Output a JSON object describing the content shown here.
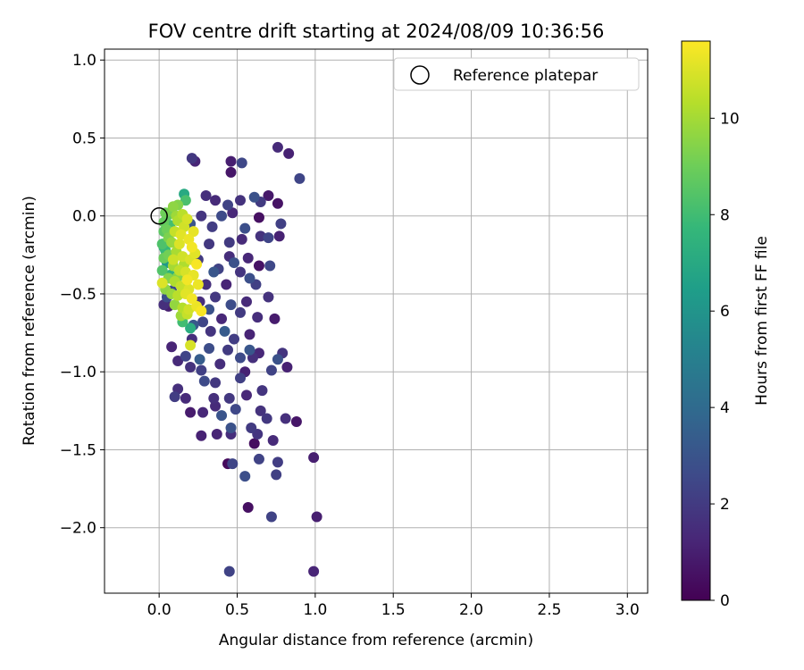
{
  "chart_data": {
    "type": "scatter",
    "title": "FOV centre drift starting at 2024/08/09 10:36:56",
    "xlabel": "Angular distance from reference (arcmin)",
    "ylabel": "Rotation from reference (arcmin)",
    "xlim": [
      -0.35,
      3.13
    ],
    "ylim": [
      -2.42,
      1.07
    ],
    "xticks": [
      0.0,
      0.5,
      1.0,
      1.5,
      2.0,
      2.5,
      3.0
    ],
    "xtick_labels": [
      "0.0",
      "0.5",
      "1.0",
      "1.5",
      "2.0",
      "2.5",
      "3.0"
    ],
    "yticks": [
      -2.0,
      -1.5,
      -1.0,
      -0.5,
      0.0,
      0.5,
      1.0
    ],
    "ytick_labels": [
      "−2.0",
      "−1.5",
      "−1.0",
      "−0.5",
      "0.0",
      "0.5",
      "1.0"
    ],
    "grid": true,
    "legend": {
      "placement": "upper-right",
      "entries": [
        "Reference platepar"
      ]
    },
    "reference_point": {
      "x": 0.0,
      "y": 0.0
    },
    "colorbar": {
      "label": "Hours from first FF file",
      "range": [
        0,
        11.6
      ],
      "ticks": [
        0,
        2,
        4,
        6,
        8,
        10
      ],
      "tick_labels": [
        "0",
        "2",
        "4",
        "6",
        "8",
        "10"
      ],
      "colormap": "viridis",
      "colors": [
        "#440154",
        "#482878",
        "#3e4a89",
        "#31688e",
        "#26828e",
        "#1f9e89",
        "#35b779",
        "#6ece58",
        "#b5de2b",
        "#fde725"
      ]
    },
    "points": [
      {
        "x": 0.45,
        "y": -2.28,
        "t": 2.3
      },
      {
        "x": 0.99,
        "y": -2.28,
        "t": 1.2
      },
      {
        "x": 0.57,
        "y": -1.87,
        "t": 0.5
      },
      {
        "x": 0.72,
        "y": -1.93,
        "t": 2.3
      },
      {
        "x": 1.01,
        "y": -1.93,
        "t": 1.0
      },
      {
        "x": 0.55,
        "y": -1.67,
        "t": 2.8
      },
      {
        "x": 0.75,
        "y": -1.66,
        "t": 2.2
      },
      {
        "x": 0.44,
        "y": -1.59,
        "t": 0.3
      },
      {
        "x": 0.47,
        "y": -1.59,
        "t": 2.4
      },
      {
        "x": 0.64,
        "y": -1.56,
        "t": 2.3
      },
      {
        "x": 0.76,
        "y": -1.58,
        "t": 2.1
      },
      {
        "x": 0.99,
        "y": -1.55,
        "t": 1.0
      },
      {
        "x": 0.61,
        "y": -1.46,
        "t": 0.4
      },
      {
        "x": 0.27,
        "y": -1.41,
        "t": 1.1
      },
      {
        "x": 0.37,
        "y": -1.4,
        "t": 1.2
      },
      {
        "x": 0.46,
        "y": -1.4,
        "t": 1.5
      },
      {
        "x": 0.63,
        "y": -1.4,
        "t": 1.8
      },
      {
        "x": 0.73,
        "y": -1.44,
        "t": 1.4
      },
      {
        "x": 0.46,
        "y": -1.36,
        "t": 2.9
      },
      {
        "x": 0.59,
        "y": -1.36,
        "t": 2.0
      },
      {
        "x": 0.69,
        "y": -1.3,
        "t": 1.9
      },
      {
        "x": 0.81,
        "y": -1.3,
        "t": 1.6
      },
      {
        "x": 0.88,
        "y": -1.32,
        "t": 0.7
      },
      {
        "x": 0.2,
        "y": -1.26,
        "t": 0.9
      },
      {
        "x": 0.28,
        "y": -1.26,
        "t": 1.3
      },
      {
        "x": 0.36,
        "y": -1.22,
        "t": 1.4
      },
      {
        "x": 0.49,
        "y": -1.24,
        "t": 2.5
      },
      {
        "x": 0.65,
        "y": -1.25,
        "t": 1.7
      },
      {
        "x": 0.1,
        "y": -1.16,
        "t": 2.1
      },
      {
        "x": 0.17,
        "y": -1.17,
        "t": 1.4
      },
      {
        "x": 0.35,
        "y": -1.17,
        "t": 1.6
      },
      {
        "x": 0.45,
        "y": -1.17,
        "t": 1.9
      },
      {
        "x": 0.56,
        "y": -1.15,
        "t": 1.3
      },
      {
        "x": 0.66,
        "y": -1.12,
        "t": 1.8
      },
      {
        "x": 0.12,
        "y": -1.11,
        "t": 1.6
      },
      {
        "x": 0.29,
        "y": -1.06,
        "t": 2.6
      },
      {
        "x": 0.52,
        "y": -1.04,
        "t": 2.2
      },
      {
        "x": 0.82,
        "y": -0.97,
        "t": 1.1
      },
      {
        "x": 0.72,
        "y": -0.99,
        "t": 2.3
      },
      {
        "x": 0.08,
        "y": -0.84,
        "t": 1.2
      },
      {
        "x": 0.17,
        "y": -0.9,
        "t": 2.4
      },
      {
        "x": 0.32,
        "y": -0.85,
        "t": 2.7
      },
      {
        "x": 0.44,
        "y": -0.86,
        "t": 2.0
      },
      {
        "x": 0.64,
        "y": -0.88,
        "t": 1.3
      },
      {
        "x": 0.79,
        "y": -0.88,
        "t": 1.8
      },
      {
        "x": 0.76,
        "y": -0.92,
        "t": 2.9
      },
      {
        "x": 0.12,
        "y": -0.93,
        "t": 1.4
      },
      {
        "x": 0.2,
        "y": -0.97,
        "t": 1.7
      },
      {
        "x": 0.39,
        "y": -0.95,
        "t": 1.5
      },
      {
        "x": 0.52,
        "y": -0.91,
        "t": 2.6
      },
      {
        "x": 0.6,
        "y": -0.91,
        "t": 1.6
      },
      {
        "x": 0.27,
        "y": -0.99,
        "t": 2.2
      },
      {
        "x": 0.55,
        "y": -1.0,
        "t": 1.1
      },
      {
        "x": 0.36,
        "y": -1.07,
        "t": 1.9
      },
      {
        "x": 0.21,
        "y": -0.79,
        "t": 1.5
      },
      {
        "x": 0.33,
        "y": -0.74,
        "t": 1.8
      },
      {
        "x": 0.48,
        "y": -0.79,
        "t": 2.1
      },
      {
        "x": 0.58,
        "y": -0.76,
        "t": 1.2
      },
      {
        "x": 0.74,
        "y": -0.66,
        "t": 0.9
      },
      {
        "x": 0.28,
        "y": -0.68,
        "t": 2.4
      },
      {
        "x": 0.4,
        "y": -0.66,
        "t": 1.3
      },
      {
        "x": 0.52,
        "y": -0.62,
        "t": 2.0
      },
      {
        "x": 0.63,
        "y": -0.65,
        "t": 1.5
      },
      {
        "x": 0.46,
        "y": -0.57,
        "t": 2.7
      },
      {
        "x": 0.56,
        "y": -0.55,
        "t": 1.4
      },
      {
        "x": 0.7,
        "y": -0.52,
        "t": 1.7
      },
      {
        "x": 0.36,
        "y": -0.52,
        "t": 1.9
      },
      {
        "x": 0.43,
        "y": -0.44,
        "t": 1.2
      },
      {
        "x": 0.62,
        "y": -0.44,
        "t": 2.2
      },
      {
        "x": 0.3,
        "y": -0.44,
        "t": 1.6
      },
      {
        "x": 0.52,
        "y": -0.36,
        "t": 1.8
      },
      {
        "x": 0.38,
        "y": -0.34,
        "t": 2.3
      },
      {
        "x": 0.64,
        "y": -0.32,
        "t": 0.6
      },
      {
        "x": 0.71,
        "y": -0.32,
        "t": 2.5
      },
      {
        "x": 0.57,
        "y": -0.27,
        "t": 1.3
      },
      {
        "x": 0.45,
        "y": -0.26,
        "t": 1.5
      },
      {
        "x": 0.32,
        "y": -0.18,
        "t": 1.9
      },
      {
        "x": 0.45,
        "y": -0.17,
        "t": 2.0
      },
      {
        "x": 0.53,
        "y": -0.15,
        "t": 1.4
      },
      {
        "x": 0.65,
        "y": -0.13,
        "t": 1.7
      },
      {
        "x": 0.77,
        "y": -0.13,
        "t": 1.1
      },
      {
        "x": 0.7,
        "y": -0.14,
        "t": 2.4
      },
      {
        "x": 0.34,
        "y": -0.07,
        "t": 2.1
      },
      {
        "x": 0.55,
        "y": -0.08,
        "t": 2.8
      },
      {
        "x": 0.78,
        "y": -0.05,
        "t": 2.2
      },
      {
        "x": 0.27,
        "y": 0.0,
        "t": 1.8
      },
      {
        "x": 0.4,
        "y": 0.0,
        "t": 2.6
      },
      {
        "x": 0.64,
        "y": -0.01,
        "t": 0.5
      },
      {
        "x": 0.3,
        "y": 0.13,
        "t": 1.6
      },
      {
        "x": 0.36,
        "y": 0.1,
        "t": 1.4
      },
      {
        "x": 0.44,
        "y": 0.07,
        "t": 2.3
      },
      {
        "x": 0.52,
        "y": 0.1,
        "t": 1.7
      },
      {
        "x": 0.61,
        "y": 0.12,
        "t": 2.9
      },
      {
        "x": 0.7,
        "y": 0.13,
        "t": 0.8
      },
      {
        "x": 0.76,
        "y": 0.08,
        "t": 0.6
      },
      {
        "x": 0.9,
        "y": 0.24,
        "t": 2.4
      },
      {
        "x": 0.21,
        "y": 0.37,
        "t": 1.9
      },
      {
        "x": 0.23,
        "y": 0.35,
        "t": 1.2
      },
      {
        "x": 0.46,
        "y": 0.35,
        "t": 1.0
      },
      {
        "x": 0.53,
        "y": 0.34,
        "t": 2.5
      },
      {
        "x": 0.46,
        "y": 0.28,
        "t": 0.7
      },
      {
        "x": 0.76,
        "y": 0.44,
        "t": 1.4
      },
      {
        "x": 0.83,
        "y": 0.4,
        "t": 1.1
      },
      {
        "x": 0.47,
        "y": 0.02,
        "t": 1.3
      },
      {
        "x": 0.65,
        "y": 0.09,
        "t": 2.0
      },
      {
        "x": 0.2,
        "y": -0.05,
        "t": 3.0
      },
      {
        "x": 0.25,
        "y": -0.28,
        "t": 2.0
      },
      {
        "x": 0.26,
        "y": -0.55,
        "t": 1.5
      },
      {
        "x": 0.22,
        "y": -0.7,
        "t": 3.2
      },
      {
        "x": 0.32,
        "y": -0.6,
        "t": 2.9
      },
      {
        "x": 0.42,
        "y": -0.74,
        "t": 3.3
      },
      {
        "x": 0.48,
        "y": -0.3,
        "t": 2.9
      },
      {
        "x": 0.58,
        "y": -0.4,
        "t": 2.8
      },
      {
        "x": 0.58,
        "y": -0.86,
        "t": 3.1
      },
      {
        "x": 0.4,
        "y": -1.28,
        "t": 3.0
      },
      {
        "x": 0.26,
        "y": -0.92,
        "t": 3.4
      },
      {
        "x": 0.35,
        "y": -0.36,
        "t": 3.1
      },
      {
        "x": 0.05,
        "y": -0.52,
        "t": 2.8
      },
      {
        "x": 0.06,
        "y": -0.58,
        "t": 1.0
      },
      {
        "x": 0.03,
        "y": -0.57,
        "t": 1.6
      },
      {
        "x": 0.08,
        "y": -0.48,
        "t": 2.6
      },
      {
        "x": 0.05,
        "y": -0.3,
        "t": 6.2
      },
      {
        "x": 0.07,
        "y": -0.38,
        "t": 7.4
      },
      {
        "x": 0.04,
        "y": -0.22,
        "t": 7.8
      },
      {
        "x": 0.02,
        "y": -0.18,
        "t": 8.3
      },
      {
        "x": 0.03,
        "y": -0.1,
        "t": 8.6
      },
      {
        "x": 0.03,
        "y": -0.04,
        "t": 8.8
      },
      {
        "x": 0.05,
        "y": 0.0,
        "t": 8.7
      },
      {
        "x": 0.04,
        "y": 0.02,
        "t": 9.0
      },
      {
        "x": 0.08,
        "y": 0.03,
        "t": 9.2
      },
      {
        "x": 0.09,
        "y": 0.06,
        "t": 9.6
      },
      {
        "x": 0.12,
        "y": 0.07,
        "t": 9.4
      },
      {
        "x": 0.16,
        "y": 0.14,
        "t": 7.0
      },
      {
        "x": 0.17,
        "y": 0.1,
        "t": 8.2
      },
      {
        "x": 0.15,
        "y": 0.01,
        "t": 10.4
      },
      {
        "x": 0.18,
        "y": -0.02,
        "t": 10.9
      },
      {
        "x": 0.12,
        "y": -0.03,
        "t": 10.2
      },
      {
        "x": 0.1,
        "y": -0.1,
        "t": 10.6
      },
      {
        "x": 0.14,
        "y": -0.12,
        "t": 11.1
      },
      {
        "x": 0.19,
        "y": -0.15,
        "t": 11.3
      },
      {
        "x": 0.22,
        "y": -0.1,
        "t": 11.2
      },
      {
        "x": 0.21,
        "y": -0.2,
        "t": 11.4
      },
      {
        "x": 0.08,
        "y": -0.17,
        "t": 9.8
      },
      {
        "x": 0.06,
        "y": -0.25,
        "t": 9.1
      },
      {
        "x": 0.11,
        "y": -0.23,
        "t": 10.1
      },
      {
        "x": 0.15,
        "y": -0.26,
        "t": 10.8
      },
      {
        "x": 0.2,
        "y": -0.28,
        "t": 11.0
      },
      {
        "x": 0.24,
        "y": -0.31,
        "t": 11.5
      },
      {
        "x": 0.09,
        "y": -0.32,
        "t": 10.0
      },
      {
        "x": 0.13,
        "y": -0.35,
        "t": 10.5
      },
      {
        "x": 0.17,
        "y": -0.36,
        "t": 10.9
      },
      {
        "x": 0.22,
        "y": -0.38,
        "t": 11.2
      },
      {
        "x": 0.06,
        "y": -0.4,
        "t": 9.4
      },
      {
        "x": 0.1,
        "y": -0.42,
        "t": 10.2
      },
      {
        "x": 0.14,
        "y": -0.45,
        "t": 10.6
      },
      {
        "x": 0.19,
        "y": -0.47,
        "t": 11.0
      },
      {
        "x": 0.25,
        "y": -0.44,
        "t": 11.3
      },
      {
        "x": 0.02,
        "y": -0.43,
        "t": 11.0
      },
      {
        "x": 0.04,
        "y": -0.47,
        "t": 9.6
      },
      {
        "x": 0.08,
        "y": -0.5,
        "t": 9.8
      },
      {
        "x": 0.12,
        "y": -0.51,
        "t": 10.4
      },
      {
        "x": 0.17,
        "y": -0.5,
        "t": 11.1
      },
      {
        "x": 0.21,
        "y": -0.53,
        "t": 11.4
      },
      {
        "x": 0.1,
        "y": -0.57,
        "t": 9.7
      },
      {
        "x": 0.15,
        "y": -0.59,
        "t": 10.3
      },
      {
        "x": 0.19,
        "y": -0.6,
        "t": 10.8
      },
      {
        "x": 0.24,
        "y": -0.58,
        "t": 11.3
      },
      {
        "x": 0.14,
        "y": -0.64,
        "t": 9.9
      },
      {
        "x": 0.18,
        "y": -0.63,
        "t": 10.6
      },
      {
        "x": 0.27,
        "y": -0.61,
        "t": 11.5
      },
      {
        "x": 0.15,
        "y": -0.68,
        "t": 8.0
      },
      {
        "x": 0.2,
        "y": -0.72,
        "t": 7.2
      },
      {
        "x": 0.2,
        "y": -0.83,
        "t": 10.9
      },
      {
        "x": 0.03,
        "y": -0.27,
        "t": 8.9
      },
      {
        "x": 0.06,
        "y": -0.14,
        "t": 9.3
      },
      {
        "x": 0.02,
        "y": -0.35,
        "t": 8.4
      },
      {
        "x": 0.09,
        "y": -0.28,
        "t": 10.7
      },
      {
        "x": 0.13,
        "y": -0.18,
        "t": 11.0
      },
      {
        "x": 0.16,
        "y": -0.07,
        "t": 10.8
      },
      {
        "x": 0.11,
        "y": 0.0,
        "t": 9.9
      },
      {
        "x": 0.07,
        "y": -0.06,
        "t": 8.1
      },
      {
        "x": 0.18,
        "y": -0.41,
        "t": 11.4
      },
      {
        "x": 0.23,
        "y": -0.24,
        "t": 11.1
      },
      {
        "x": 0.16,
        "y": -0.31,
        "t": 10.2
      },
      {
        "x": 0.12,
        "y": -0.39,
        "t": 9.5
      },
      {
        "x": 0.05,
        "y": -0.09,
        "t": 9.0
      },
      {
        "x": 0.03,
        "y": -0.2,
        "t": 7.6
      }
    ]
  }
}
